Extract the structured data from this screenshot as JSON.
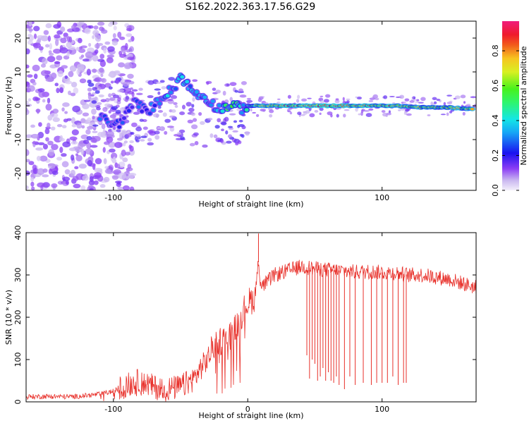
{
  "figure": {
    "title": "S162.2022.363.17.56.G29"
  },
  "chart_data": [
    {
      "type": "heatmap",
      "title": "S162.2022.363.17.56.G29",
      "xlabel": "Height of straight line (km)",
      "ylabel": "Frequency (Hz)",
      "xlim": [
        -165,
        170
      ],
      "ylim": [
        -25,
        25
      ],
      "x_ticks": [
        -100,
        0,
        100
      ],
      "y_ticks": [
        -20,
        -10,
        0,
        10,
        20
      ],
      "grid": false,
      "colorscale": "rainbow (purple → blue → cyan → green → yellow → red → magenta)",
      "colorbar": {
        "label": "Normalized spectral amplitude",
        "range": [
          0,
          0.97
        ],
        "ticks": [
          0.0,
          0.2,
          0.4,
          0.6,
          0.8
        ],
        "tick_labels": [
          "0.0",
          "0.2",
          "0.4",
          "0.6",
          "0.8"
        ]
      },
      "ridge": {
        "description": "peak frequency track vs height",
        "x": [
          -110,
          -100,
          -95,
          -90,
          -85,
          -80,
          -75,
          -70,
          -65,
          -60,
          -55,
          -50,
          -45,
          -40,
          -35,
          -30,
          -25,
          -20,
          -15,
          -10,
          -5,
          0,
          10,
          30,
          60,
          90,
          110,
          130,
          150,
          168
        ],
        "y": [
          -3,
          -6,
          -5,
          -2,
          1,
          0,
          -2,
          0,
          2,
          4,
          5,
          9,
          6,
          4,
          3,
          2,
          0,
          -1,
          0,
          0,
          -1,
          0,
          0,
          0,
          0,
          0,
          0,
          -0.5,
          -0.5,
          -1
        ],
        "amplitude": [
          0.35,
          0.3,
          0.3,
          0.3,
          0.3,
          0.35,
          0.3,
          0.35,
          0.4,
          0.45,
          0.4,
          0.45,
          0.45,
          0.4,
          0.4,
          0.35,
          0.4,
          0.45,
          0.6,
          0.6,
          0.45,
          0.5,
          0.95,
          0.95,
          0.95,
          0.95,
          0.9,
          0.8,
          0.75,
          0.9
        ]
      }
    },
    {
      "type": "line",
      "xlabel": "Height of straight line (km)",
      "ylabel": "SNR (10 * v/v)",
      "xlim": [
        -165,
        170
      ],
      "ylim": [
        0,
        400
      ],
      "x_ticks": [
        -100,
        0,
        100
      ],
      "y_ticks": [
        0,
        100,
        200,
        300,
        400
      ],
      "grid": false,
      "series": [
        {
          "color": "#e8302a",
          "x": [
            -165,
            -150,
            -130,
            -120,
            -110,
            -100,
            -90,
            -80,
            -70,
            -60,
            -50,
            -40,
            -35,
            -30,
            -25,
            -20,
            -15,
            -10,
            -5,
            0,
            5,
            8,
            10,
            15,
            20,
            25,
            30,
            40,
            50,
            60,
            70,
            80,
            90,
            100,
            110,
            120,
            130,
            140,
            150,
            160,
            170
          ],
          "values": [
            12,
            13,
            12,
            15,
            18,
            25,
            40,
            50,
            35,
            30,
            35,
            55,
            80,
            100,
            135,
            145,
            150,
            170,
            205,
            235,
            245,
            330,
            270,
            285,
            300,
            305,
            310,
            320,
            315,
            312,
            310,
            307,
            308,
            306,
            305,
            300,
            300,
            295,
            290,
            280,
            270
          ],
          "spike_x": [
            8
          ],
          "spike_values": [
            398
          ],
          "dropouts_x": [
            44,
            46,
            48,
            50,
            52,
            54,
            56,
            58,
            60,
            62,
            64,
            66,
            68,
            72,
            76,
            80,
            86,
            92,
            96,
            100,
            104,
            108,
            112,
            116,
            118
          ],
          "dropouts_values": [
            110,
            55,
            100,
            90,
            50,
            60,
            80,
            50,
            70,
            50,
            45,
            60,
            40,
            30,
            60,
            40,
            45,
            40,
            45,
            45,
            45,
            60,
            40,
            45,
            45
          ]
        }
      ]
    }
  ]
}
